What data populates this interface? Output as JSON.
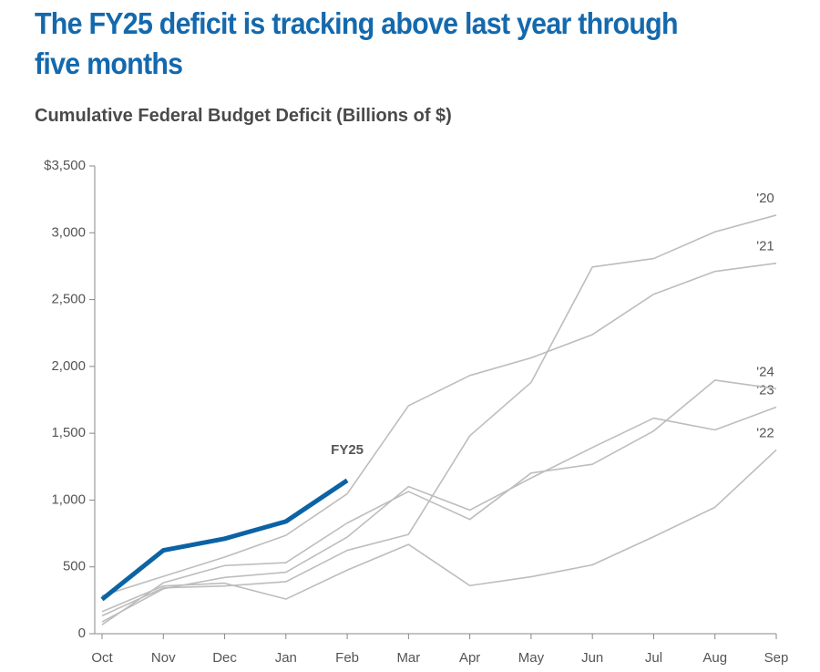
{
  "chart_data": {
    "type": "line",
    "title": "The FY25 deficit is tracking above last year through five months",
    "subtitle": "Cumulative Federal Budget Deficit (Billions of $)",
    "categories": [
      "Oct",
      "Nov",
      "Dec",
      "Jan",
      "Feb",
      "Mar",
      "Apr",
      "May",
      "Jun",
      "Jul",
      "Aug",
      "Sep"
    ],
    "ylim": [
      0,
      3500
    ],
    "yticks": [
      0,
      500,
      {
        "value": 1000,
        "label": "1,000"
      },
      {
        "value": 1500,
        "label": "1,500"
      },
      {
        "value": 2000,
        "label": "2,000"
      },
      {
        "value": 2500,
        "label": "2,500"
      },
      {
        "value": 3000,
        "label": "3,000"
      },
      {
        "value": 3500,
        "label": "$3,500"
      }
    ],
    "series": [
      {
        "name": "'20",
        "color": "#bdbdbd",
        "values": [
          134,
          343,
          357,
          389,
          624,
          743,
          1481,
          1880,
          2744,
          2807,
          3007,
          3132
        ]
      },
      {
        "name": "'21",
        "color": "#bdbdbd",
        "values": [
          284,
          429,
          573,
          736,
          1047,
          1706,
          1932,
          2064,
          2238,
          2540,
          2711,
          2772
        ]
      },
      {
        "name": "'22",
        "color": "#bdbdbd",
        "values": [
          165,
          357,
          378,
          259,
          476,
          668,
          360,
          426,
          515,
          726,
          946,
          1375
        ]
      },
      {
        "name": "'23",
        "color": "#bdbdbd",
        "values": [
          88,
          336,
          421,
          460,
          723,
          1101,
          925,
          1165,
          1393,
          1613,
          1525,
          1695
        ]
      },
      {
        "name": "'24",
        "color": "#bdbdbd",
        "values": [
          67,
          381,
          510,
          532,
          828,
          1064,
          855,
          1202,
          1268,
          1517,
          1897,
          1833
        ]
      },
      {
        "name": "FY25",
        "color": "#0b63a5",
        "values": [
          257,
          624,
          711,
          840,
          1147,
          null,
          null,
          null,
          null,
          null,
          null,
          null
        ]
      }
    ]
  }
}
